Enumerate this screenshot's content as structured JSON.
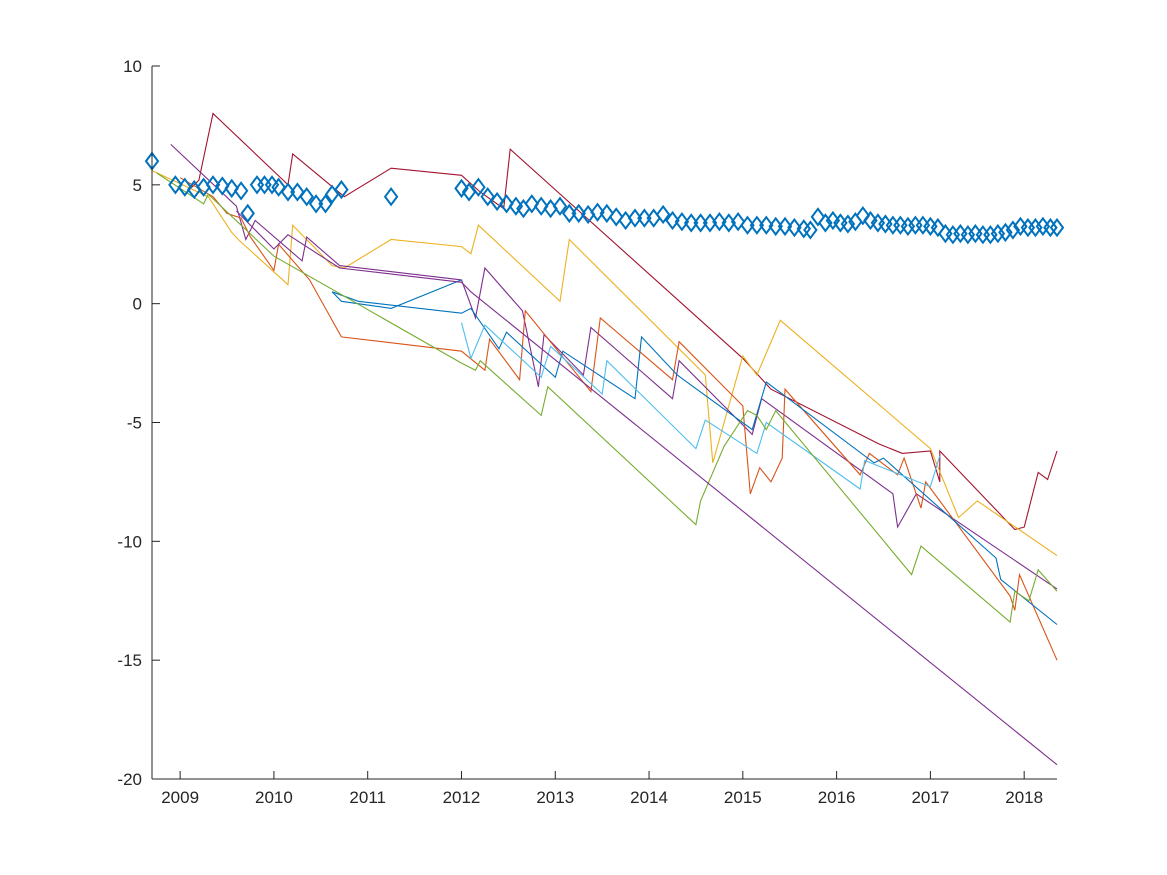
{
  "chart_data": {
    "type": "line",
    "title": "",
    "xlabel": "",
    "ylabel": "",
    "xlim": [
      2008.7,
      2018.35
    ],
    "ylim": [
      -20,
      10
    ],
    "grid": false,
    "x_ticks": [
      {
        "value": 2009,
        "label": "2009"
      },
      {
        "value": 2010,
        "label": "2010"
      },
      {
        "value": 2011,
        "label": "2011"
      },
      {
        "value": 2012,
        "label": "2012"
      },
      {
        "value": 2013,
        "label": "2013"
      },
      {
        "value": 2014,
        "label": "2014"
      },
      {
        "value": 2015,
        "label": "2015"
      },
      {
        "value": 2016,
        "label": "2016"
      },
      {
        "value": 2017,
        "label": "2017"
      },
      {
        "value": 2018,
        "label": "2018"
      }
    ],
    "y_ticks": [
      {
        "value": 10,
        "label": "10"
      },
      {
        "value": 5,
        "label": "5"
      },
      {
        "value": 0,
        "label": "0"
      },
      {
        "value": -5,
        "label": "-5"
      },
      {
        "value": -10,
        "label": "-10"
      },
      {
        "value": -15,
        "label": "-15"
      },
      {
        "value": -20,
        "label": "-20"
      }
    ],
    "scatter": {
      "marker": "diamond",
      "color": "#0072BD",
      "points": [
        [
          2008.7,
          6.0
        ],
        [
          2008.95,
          5.0
        ],
        [
          2009.05,
          4.9
        ],
        [
          2009.15,
          4.8
        ],
        [
          2009.25,
          4.9
        ],
        [
          2009.35,
          5.0
        ],
        [
          2009.45,
          4.95
        ],
        [
          2009.55,
          4.85
        ],
        [
          2009.65,
          4.75
        ],
        [
          2009.72,
          3.8
        ],
        [
          2009.82,
          5.0
        ],
        [
          2009.9,
          5.0
        ],
        [
          2009.98,
          5.0
        ],
        [
          2010.05,
          4.9
        ],
        [
          2010.15,
          4.7
        ],
        [
          2010.25,
          4.7
        ],
        [
          2010.35,
          4.5
        ],
        [
          2010.45,
          4.2
        ],
        [
          2010.55,
          4.2
        ],
        [
          2010.62,
          4.6
        ],
        [
          2010.72,
          4.8
        ],
        [
          2011.25,
          4.5
        ],
        [
          2012.0,
          4.85
        ],
        [
          2012.08,
          4.7
        ],
        [
          2012.18,
          4.9
        ],
        [
          2012.28,
          4.5
        ],
        [
          2012.38,
          4.3
        ],
        [
          2012.48,
          4.2
        ],
        [
          2012.58,
          4.1
        ],
        [
          2012.66,
          4.0
        ],
        [
          2012.75,
          4.2
        ],
        [
          2012.85,
          4.1
        ],
        [
          2012.95,
          4.0
        ],
        [
          2013.05,
          4.1
        ],
        [
          2013.15,
          3.8
        ],
        [
          2013.25,
          3.8
        ],
        [
          2013.35,
          3.75
        ],
        [
          2013.45,
          3.85
        ],
        [
          2013.55,
          3.8
        ],
        [
          2013.65,
          3.65
        ],
        [
          2013.75,
          3.5
        ],
        [
          2013.85,
          3.6
        ],
        [
          2013.95,
          3.6
        ],
        [
          2014.05,
          3.6
        ],
        [
          2014.15,
          3.75
        ],
        [
          2014.25,
          3.5
        ],
        [
          2014.35,
          3.45
        ],
        [
          2014.45,
          3.4
        ],
        [
          2014.55,
          3.4
        ],
        [
          2014.65,
          3.4
        ],
        [
          2014.75,
          3.45
        ],
        [
          2014.85,
          3.4
        ],
        [
          2014.95,
          3.45
        ],
        [
          2015.05,
          3.3
        ],
        [
          2015.15,
          3.3
        ],
        [
          2015.25,
          3.3
        ],
        [
          2015.35,
          3.25
        ],
        [
          2015.45,
          3.25
        ],
        [
          2015.55,
          3.2
        ],
        [
          2015.65,
          3.15
        ],
        [
          2015.72,
          3.1
        ],
        [
          2015.8,
          3.65
        ],
        [
          2015.88,
          3.4
        ],
        [
          2015.96,
          3.5
        ],
        [
          2016.04,
          3.4
        ],
        [
          2016.12,
          3.35
        ],
        [
          2016.2,
          3.45
        ],
        [
          2016.28,
          3.7
        ],
        [
          2016.36,
          3.5
        ],
        [
          2016.44,
          3.4
        ],
        [
          2016.52,
          3.35
        ],
        [
          2016.6,
          3.3
        ],
        [
          2016.68,
          3.3
        ],
        [
          2016.76,
          3.25
        ],
        [
          2016.84,
          3.3
        ],
        [
          2016.92,
          3.3
        ],
        [
          2017.0,
          3.25
        ],
        [
          2017.08,
          3.2
        ],
        [
          2017.16,
          2.95
        ],
        [
          2017.24,
          2.9
        ],
        [
          2017.32,
          2.95
        ],
        [
          2017.4,
          2.9
        ],
        [
          2017.48,
          2.95
        ],
        [
          2017.56,
          2.9
        ],
        [
          2017.64,
          2.9
        ],
        [
          2017.72,
          2.95
        ],
        [
          2017.8,
          3.0
        ],
        [
          2017.88,
          3.1
        ],
        [
          2017.96,
          3.25
        ],
        [
          2018.04,
          3.2
        ],
        [
          2018.12,
          3.2
        ],
        [
          2018.2,
          3.25
        ],
        [
          2018.28,
          3.2
        ],
        [
          2018.35,
          3.2
        ]
      ]
    },
    "series": [
      {
        "color": "#A2142F",
        "points": [
          [
            2009.05,
            4.6
          ],
          [
            2009.2,
            5.2
          ],
          [
            2009.35,
            8.0
          ],
          [
            2010.15,
            5.0
          ],
          [
            2010.2,
            6.3
          ],
          [
            2010.75,
            4.5
          ],
          [
            2011.25,
            5.7
          ],
          [
            2012.0,
            5.4
          ],
          [
            2012.2,
            4.7
          ],
          [
            2012.45,
            4.0
          ],
          [
            2012.52,
            6.5
          ],
          [
            2015.0,
            -2.3
          ],
          [
            2015.3,
            -3.6
          ],
          [
            2016.45,
            -5.9
          ],
          [
            2016.7,
            -6.3
          ],
          [
            2017.0,
            -6.2
          ],
          [
            2017.1,
            -7.5
          ],
          [
            2017.1,
            -6.2
          ],
          [
            2017.9,
            -9.5
          ],
          [
            2018.0,
            -9.4
          ],
          [
            2018.15,
            -7.1
          ],
          [
            2018.25,
            -7.4
          ],
          [
            2018.35,
            -6.2
          ]
        ]
      },
      {
        "color": "#EDB120",
        "points": [
          [
            2008.7,
            5.6
          ],
          [
            2009.3,
            4.5
          ],
          [
            2009.55,
            3.0
          ],
          [
            2009.62,
            2.7
          ],
          [
            2010.15,
            0.8
          ],
          [
            2010.2,
            3.3
          ],
          [
            2010.62,
            1.6
          ],
          [
            2010.75,
            1.5
          ],
          [
            2011.25,
            2.7
          ],
          [
            2012.0,
            2.4
          ],
          [
            2012.1,
            2.1
          ],
          [
            2012.18,
            3.3
          ],
          [
            2013.05,
            0.1
          ],
          [
            2013.15,
            2.7
          ],
          [
            2014.6,
            -3.0
          ],
          [
            2014.68,
            -6.7
          ],
          [
            2015.0,
            -2.2
          ],
          [
            2015.15,
            -3.0
          ],
          [
            2015.4,
            -0.7
          ],
          [
            2017.0,
            -6.1
          ],
          [
            2017.3,
            -9.0
          ],
          [
            2017.5,
            -8.3
          ],
          [
            2018.35,
            -10.6
          ]
        ]
      },
      {
        "color": "#7E2F8E",
        "points": [
          [
            2008.9,
            6.7
          ],
          [
            2009.6,
            4.1
          ],
          [
            2009.7,
            2.7
          ],
          [
            2009.8,
            3.5
          ],
          [
            2010.3,
            1.8
          ],
          [
            2010.35,
            2.8
          ],
          [
            2010.7,
            1.6
          ],
          [
            2012.0,
            1.0
          ],
          [
            2012.15,
            -0.6
          ],
          [
            2012.25,
            1.5
          ],
          [
            2012.65,
            -0.3
          ],
          [
            2012.82,
            -3.5
          ],
          [
            2012.88,
            -1.3
          ],
          [
            2013.3,
            -3.0
          ],
          [
            2013.38,
            -1.0
          ],
          [
            2014.25,
            -4.0
          ],
          [
            2014.32,
            -2.4
          ],
          [
            2015.1,
            -5.5
          ],
          [
            2015.2,
            -4.0
          ],
          [
            2016.6,
            -8.0
          ],
          [
            2016.65,
            -9.4
          ],
          [
            2016.85,
            -8.0
          ],
          [
            2018.35,
            -12.0
          ]
        ]
      },
      {
        "color": "#D95319",
        "points": [
          [
            2009.0,
            5.3
          ],
          [
            2009.35,
            4.5
          ],
          [
            2009.5,
            3.8
          ],
          [
            2009.65,
            3.6
          ],
          [
            2009.75,
            2.8
          ],
          [
            2010.0,
            1.4
          ],
          [
            2010.05,
            2.5
          ],
          [
            2010.38,
            1.0
          ],
          [
            2010.72,
            -1.4
          ],
          [
            2012.0,
            -2.0
          ],
          [
            2012.25,
            -2.8
          ],
          [
            2012.3,
            -1.5
          ],
          [
            2012.62,
            -3.2
          ],
          [
            2012.68,
            -0.3
          ],
          [
            2013.38,
            -3.7
          ],
          [
            2013.48,
            -0.6
          ],
          [
            2014.25,
            -3.2
          ],
          [
            2014.32,
            -1.6
          ],
          [
            2015.0,
            -4.3
          ],
          [
            2015.08,
            -8.0
          ],
          [
            2015.18,
            -6.9
          ],
          [
            2015.3,
            -7.5
          ],
          [
            2015.42,
            -6.5
          ],
          [
            2015.45,
            -3.6
          ],
          [
            2016.25,
            -7.2
          ],
          [
            2016.35,
            -6.3
          ],
          [
            2016.65,
            -7.2
          ],
          [
            2016.72,
            -6.5
          ],
          [
            2016.9,
            -8.6
          ],
          [
            2016.95,
            -7.5
          ],
          [
            2017.85,
            -12.3
          ],
          [
            2017.9,
            -12.9
          ],
          [
            2017.95,
            -11.4
          ],
          [
            2018.35,
            -15.0
          ]
        ]
      },
      {
        "color": "#0072BD",
        "points": [
          [
            2010.72,
            0.1
          ],
          [
            2011.25,
            -0.2
          ],
          [
            2012.0,
            1.0
          ],
          [
            2011.25,
            -0.2
          ],
          [
            2010.72,
            0.1
          ],
          [
            2010.62,
            0.5
          ],
          [
            2010.9,
            0.1
          ],
          [
            2012.0,
            -0.4
          ],
          [
            2012.1,
            -0.2
          ],
          [
            2012.4,
            -1.9
          ],
          [
            2012.48,
            -1.2
          ],
          [
            2013.0,
            -3.1
          ],
          [
            2013.08,
            -2.0
          ],
          [
            2013.85,
            -4.0
          ],
          [
            2013.92,
            -1.4
          ],
          [
            2014.3,
            -3.0
          ],
          [
            2015.1,
            -5.3
          ],
          [
            2015.25,
            -3.3
          ],
          [
            2016.4,
            -6.7
          ],
          [
            2016.5,
            -6.5
          ],
          [
            2017.7,
            -10.7
          ],
          [
            2017.75,
            -11.6
          ],
          [
            2018.35,
            -13.5
          ]
        ]
      },
      {
        "color": "#4DBEEE",
        "points": [
          [
            2012.0,
            -0.8
          ],
          [
            2012.1,
            -2.3
          ],
          [
            2012.25,
            -0.9
          ],
          [
            2012.85,
            -3.1
          ],
          [
            2012.95,
            -1.8
          ],
          [
            2013.5,
            -3.8
          ],
          [
            2013.55,
            -2.4
          ],
          [
            2014.5,
            -6.1
          ],
          [
            2014.6,
            -4.9
          ],
          [
            2015.15,
            -6.3
          ],
          [
            2015.25,
            -5.0
          ],
          [
            2016.25,
            -7.8
          ],
          [
            2016.3,
            -6.6
          ],
          [
            2017.0,
            -7.7
          ],
          [
            2017.1,
            -6.4
          ]
        ]
      },
      {
        "color": "#77AC30",
        "points": [
          [
            2008.75,
            5.5
          ],
          [
            2009.25,
            4.2
          ],
          [
            2009.3,
            4.6
          ],
          [
            2010.0,
            2.0
          ],
          [
            2012.0,
            -2.5
          ],
          [
            2012.15,
            -2.8
          ],
          [
            2012.2,
            -2.4
          ],
          [
            2012.85,
            -4.7
          ],
          [
            2012.92,
            -3.5
          ],
          [
            2014.5,
            -9.3
          ],
          [
            2014.55,
            -8.3
          ],
          [
            2014.8,
            -6.0
          ],
          [
            2015.05,
            -4.5
          ],
          [
            2015.15,
            -4.7
          ],
          [
            2015.25,
            -5.3
          ],
          [
            2015.35,
            -4.5
          ],
          [
            2016.8,
            -11.4
          ],
          [
            2016.9,
            -10.2
          ],
          [
            2017.85,
            -13.4
          ],
          [
            2017.9,
            -12.1
          ],
          [
            2018.05,
            -12.5
          ],
          [
            2018.15,
            -11.2
          ],
          [
            2018.35,
            -12.1
          ]
        ]
      },
      {
        "color": "#7E2F8E",
        "points": [
          [
            2009.6,
            3.9
          ],
          [
            2010.0,
            2.3
          ],
          [
            2010.15,
            2.9
          ],
          [
            2010.7,
            1.5
          ],
          [
            2012.0,
            0.9
          ],
          [
            2012.1,
            0.5
          ],
          [
            2018.35,
            -19.4
          ]
        ]
      }
    ]
  }
}
